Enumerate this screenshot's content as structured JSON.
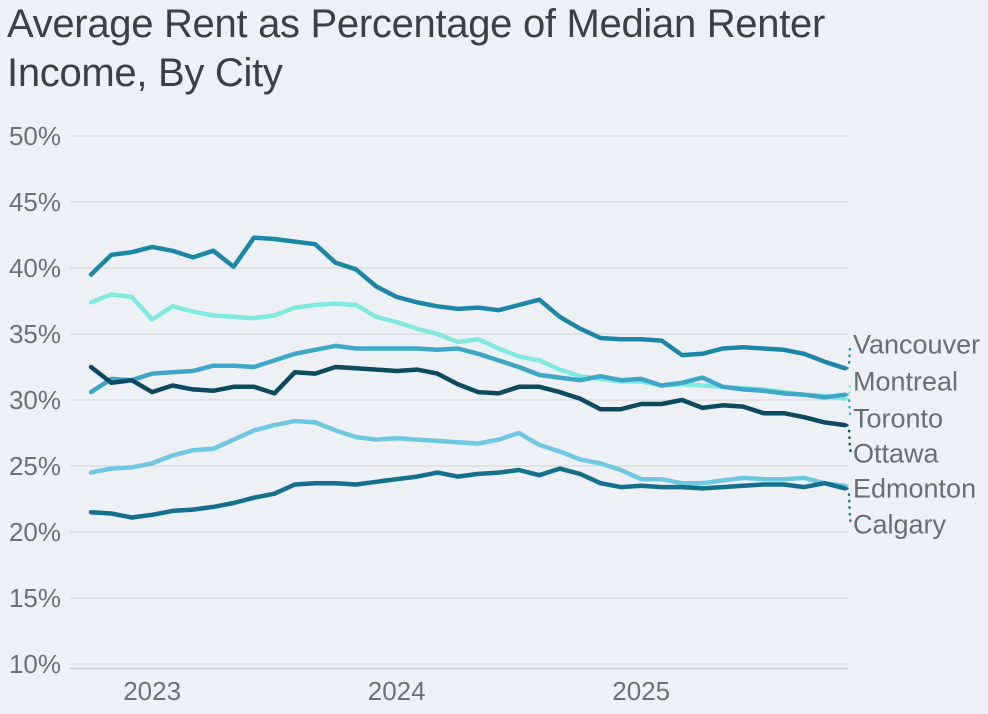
{
  "title": "Average Rent as Percentage of Median Renter Income, By City",
  "title_lines": [
    "Average Rent as Percentage of Median Renter",
    "Income, By City"
  ],
  "colors": {
    "background": "#edf1f6",
    "grid": "#d8dad8",
    "axis_line": "#c7cbd2",
    "title_text": "#3a4046",
    "tick_text": "#6d7175",
    "city_label_text": "#696e73"
  },
  "chart_data": {
    "type": "line",
    "title": "Average Rent as Percentage of Median Renter Income, By City",
    "xlabel": "",
    "ylabel": "",
    "grid": true,
    "legend_position": "right-edge-labels",
    "ylim": [
      10,
      50
    ],
    "y_ticks": [
      {
        "value": 50,
        "label": "50%"
      },
      {
        "value": 45,
        "label": "45%"
      },
      {
        "value": 40,
        "label": "40%"
      },
      {
        "value": 35,
        "label": "35%"
      },
      {
        "value": 30,
        "label": "30%"
      },
      {
        "value": 25,
        "label": "25%"
      },
      {
        "value": 20,
        "label": "20%"
      },
      {
        "value": 15,
        "label": "15%"
      },
      {
        "value": 10,
        "label": "10%"
      }
    ],
    "x_unit": "month",
    "x_range_months": [
      "2022-10",
      "2025-11"
    ],
    "x_ticks": [
      {
        "label": "2023",
        "month_index": 3
      },
      {
        "label": "2024",
        "month_index": 15
      },
      {
        "label": "2025",
        "month_index": 27
      }
    ],
    "series": [
      {
        "name": "Vancouver",
        "color": "#1b86a5",
        "values": [
          39.5,
          41.0,
          41.2,
          41.6,
          41.3,
          40.8,
          41.3,
          40.1,
          42.3,
          42.2,
          42.0,
          41.8,
          40.4,
          39.9,
          38.6,
          37.8,
          37.4,
          37.1,
          36.9,
          37.0,
          36.8,
          37.2,
          37.6,
          36.3,
          35.4,
          34.7,
          34.6,
          34.6,
          34.5,
          33.4,
          33.5,
          33.9,
          34.0,
          33.9,
          33.8,
          33.5,
          32.9,
          32.4
        ]
      },
      {
        "name": "Montreal",
        "color": "#80e9e1",
        "values": [
          37.4,
          38.0,
          37.8,
          36.1,
          37.1,
          36.7,
          36.4,
          36.3,
          36.2,
          36.4,
          37.0,
          37.2,
          37.3,
          37.2,
          36.3,
          35.9,
          35.4,
          35.0,
          34.4,
          34.6,
          33.9,
          33.3,
          33.0,
          32.3,
          31.8,
          31.6,
          31.4,
          31.4,
          31.1,
          31.2,
          31.1,
          31.0,
          30.9,
          30.8,
          30.6,
          30.4,
          30.3,
          30.1
        ]
      },
      {
        "name": "Toronto",
        "color": "#3ea6c6",
        "values": [
          30.6,
          31.6,
          31.5,
          32.0,
          32.1,
          32.2,
          32.6,
          32.6,
          32.5,
          33.0,
          33.5,
          33.8,
          34.1,
          33.9,
          33.9,
          33.9,
          33.9,
          33.8,
          33.9,
          33.5,
          33.0,
          32.5,
          31.9,
          31.7,
          31.5,
          31.8,
          31.5,
          31.6,
          31.1,
          31.3,
          31.7,
          31.0,
          30.8,
          30.7,
          30.5,
          30.4,
          30.2,
          30.4
        ]
      },
      {
        "name": "Ottawa",
        "color": "#0d4a62",
        "values": [
          32.5,
          31.3,
          31.5,
          30.6,
          31.1,
          30.8,
          30.7,
          31.0,
          31.0,
          30.5,
          32.1,
          32.0,
          32.5,
          32.4,
          32.3,
          32.2,
          32.3,
          32.0,
          31.2,
          30.6,
          30.5,
          31.0,
          31.0,
          30.6,
          30.1,
          29.3,
          29.3,
          29.7,
          29.7,
          30.0,
          29.4,
          29.6,
          29.5,
          29.0,
          29.0,
          28.7,
          28.3,
          28.1
        ]
      },
      {
        "name": "Edmonton",
        "color": "#6ec8e1",
        "values": [
          24.5,
          24.8,
          24.9,
          25.2,
          25.8,
          26.2,
          26.3,
          27.0,
          27.7,
          28.1,
          28.4,
          28.3,
          27.7,
          27.2,
          27.0,
          27.1,
          27.0,
          26.9,
          26.8,
          26.7,
          27.0,
          27.5,
          26.6,
          26.1,
          25.5,
          25.2,
          24.7,
          24.0,
          24.0,
          23.7,
          23.7,
          23.9,
          24.1,
          24.0,
          24.0,
          24.1,
          23.7,
          23.5
        ]
      },
      {
        "name": "Calgary",
        "color": "#14708d",
        "values": [
          21.5,
          21.4,
          21.1,
          21.3,
          21.6,
          21.7,
          21.9,
          22.2,
          22.6,
          22.9,
          23.6,
          23.7,
          23.7,
          23.6,
          23.8,
          24.0,
          24.2,
          24.5,
          24.2,
          24.4,
          24.5,
          24.7,
          24.3,
          24.8,
          24.4,
          23.7,
          23.4,
          23.5,
          23.4,
          23.4,
          23.3,
          23.4,
          23.5,
          23.6,
          23.6,
          23.4,
          23.7,
          23.3
        ]
      }
    ]
  }
}
